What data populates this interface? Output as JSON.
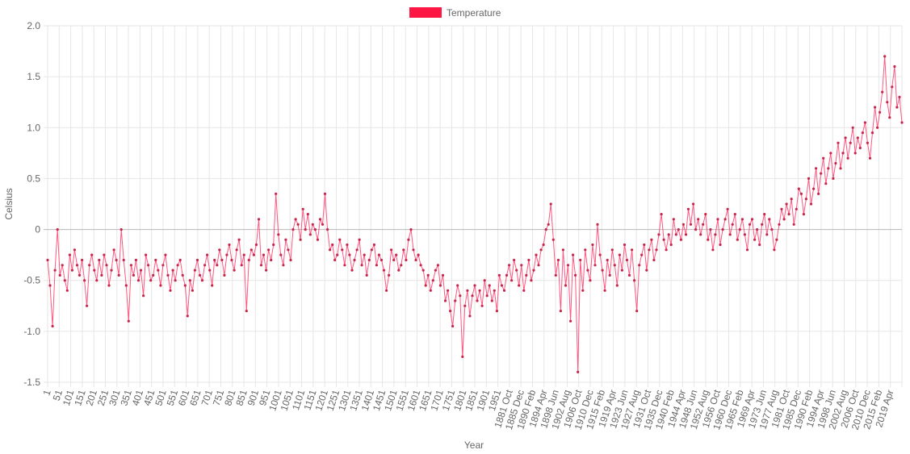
{
  "chart_data": {
    "type": "line",
    "legend": {
      "position": "top-center",
      "label": "Temperature"
    },
    "xlabel": "Year",
    "ylabel": "Celsius",
    "ylim": [
      -1.5,
      2.0
    ],
    "ytick_step": 0.5,
    "yticks": [
      "-1.5",
      "-1.0",
      "-0.5",
      "0",
      "0.5",
      "1.0",
      "1.5",
      "2.0"
    ],
    "grid": true,
    "colors": {
      "line": "#ff3b6b",
      "point": "#c8254a",
      "legend_fill": "#ff1744",
      "grid": "#e6e6e6",
      "zero_line": "#b8b8b8"
    },
    "x_tick_labels": [
      "1",
      "51",
      "101",
      "151",
      "201",
      "251",
      "301",
      "351",
      "401",
      "451",
      "501",
      "551",
      "601",
      "651",
      "701",
      "751",
      "801",
      "851",
      "901",
      "951",
      "1001",
      "1051",
      "1101",
      "1151",
      "1201",
      "1251",
      "1301",
      "1351",
      "1401",
      "1451",
      "1501",
      "1551",
      "1601",
      "1651",
      "1701",
      "1751",
      "1801",
      "1851",
      "1901",
      "1951",
      "1881 Oct",
      "1885 Dec",
      "1890 Feb",
      "1894 Apr",
      "1898 Jun",
      "1902 Aug",
      "1906 Oct",
      "1910 Dec",
      "1915 Feb",
      "1919 Apr",
      "1923 Jun",
      "1927 Aug",
      "1931 Oct",
      "1935 Dec",
      "1940 Feb",
      "1944 Apr",
      "1948 Jun",
      "1952 Aug",
      "1956 Oct",
      "1960 Dec",
      "1965 Feb",
      "1969 Apr",
      "1973 Jun",
      "1977 Aug",
      "1981 Oct",
      "1985 Dec",
      "1990 Feb",
      "1994 Apr",
      "1998 Jun",
      "2002 Aug",
      "2006 Oct",
      "2010 Dec",
      "2015 Feb",
      "2019 Apr"
    ],
    "series": [
      {
        "name": "Temperature",
        "values": [
          -0.3,
          -0.55,
          -0.95,
          -0.4,
          0.0,
          -0.45,
          -0.35,
          -0.5,
          -0.6,
          -0.25,
          -0.4,
          -0.2,
          -0.35,
          -0.45,
          -0.3,
          -0.5,
          -0.75,
          -0.35,
          -0.25,
          -0.4,
          -0.5,
          -0.3,
          -0.45,
          -0.25,
          -0.35,
          -0.55,
          -0.4,
          -0.2,
          -0.3,
          -0.45,
          0.0,
          -0.3,
          -0.55,
          -0.9,
          -0.35,
          -0.45,
          -0.3,
          -0.5,
          -0.4,
          -0.65,
          -0.25,
          -0.35,
          -0.5,
          -0.45,
          -0.3,
          -0.4,
          -0.55,
          -0.35,
          -0.25,
          -0.45,
          -0.6,
          -0.4,
          -0.5,
          -0.35,
          -0.3,
          -0.45,
          -0.55,
          -0.85,
          -0.5,
          -0.6,
          -0.4,
          -0.3,
          -0.45,
          -0.5,
          -0.35,
          -0.25,
          -0.4,
          -0.55,
          -0.3,
          -0.35,
          -0.2,
          -0.3,
          -0.45,
          -0.25,
          -0.15,
          -0.3,
          -0.4,
          -0.2,
          -0.1,
          -0.35,
          -0.25,
          -0.8,
          -0.3,
          -0.2,
          -0.25,
          -0.15,
          0.1,
          -0.35,
          -0.25,
          -0.4,
          -0.2,
          -0.3,
          -0.15,
          0.35,
          -0.05,
          -0.25,
          -0.35,
          -0.1,
          -0.2,
          -0.3,
          0.0,
          0.1,
          0.05,
          -0.1,
          0.2,
          0.0,
          0.15,
          -0.05,
          0.05,
          0.0,
          -0.1,
          0.1,
          0.05,
          0.35,
          0.0,
          -0.2,
          -0.15,
          -0.3,
          -0.25,
          -0.1,
          -0.2,
          -0.35,
          -0.15,
          -0.25,
          -0.4,
          -0.3,
          -0.2,
          -0.1,
          -0.35,
          -0.25,
          -0.45,
          -0.3,
          -0.2,
          -0.15,
          -0.35,
          -0.25,
          -0.3,
          -0.4,
          -0.6,
          -0.45,
          -0.2,
          -0.3,
          -0.25,
          -0.4,
          -0.35,
          -0.2,
          -0.3,
          -0.1,
          0.0,
          -0.2,
          -0.3,
          -0.25,
          -0.35,
          -0.4,
          -0.55,
          -0.45,
          -0.6,
          -0.5,
          -0.4,
          -0.35,
          -0.55,
          -0.45,
          -0.7,
          -0.6,
          -0.8,
          -0.95,
          -0.7,
          -0.55,
          -0.65,
          -1.25,
          -0.75,
          -0.6,
          -0.85,
          -0.65,
          -0.55,
          -0.7,
          -0.6,
          -0.75,
          -0.5,
          -0.65,
          -0.55,
          -0.7,
          -0.6,
          -0.8,
          -0.45,
          -0.55,
          -0.6,
          -0.45,
          -0.35,
          -0.5,
          -0.3,
          -0.4,
          -0.55,
          -0.35,
          -0.6,
          -0.45,
          -0.3,
          -0.5,
          -0.4,
          -0.25,
          -0.35,
          -0.2,
          -0.15,
          0.0,
          0.05,
          0.25,
          -0.1,
          -0.45,
          -0.3,
          -0.8,
          -0.2,
          -0.55,
          -0.35,
          -0.9,
          -0.25,
          -0.45,
          -1.4,
          -0.3,
          -0.6,
          -0.2,
          -0.4,
          -0.5,
          -0.15,
          -0.35,
          0.05,
          -0.25,
          -0.4,
          -0.6,
          -0.3,
          -0.45,
          -0.2,
          -0.35,
          -0.55,
          -0.25,
          -0.4,
          -0.15,
          -0.3,
          -0.45,
          -0.2,
          -0.5,
          -0.8,
          -0.35,
          -0.25,
          -0.15,
          -0.4,
          -0.2,
          -0.1,
          -0.3,
          -0.2,
          -0.05,
          0.15,
          -0.1,
          -0.2,
          -0.05,
          -0.15,
          0.1,
          -0.05,
          0.0,
          -0.1,
          0.05,
          -0.05,
          0.2,
          0.05,
          0.25,
          0.0,
          0.1,
          -0.05,
          0.05,
          0.15,
          -0.1,
          0.0,
          -0.2,
          -0.05,
          0.1,
          -0.15,
          0.0,
          0.1,
          0.2,
          -0.05,
          0.05,
          0.15,
          -0.1,
          0.0,
          0.1,
          -0.05,
          -0.2,
          0.05,
          0.1,
          -0.1,
          0.0,
          -0.15,
          0.05,
          0.15,
          -0.05,
          0.1,
          0.0,
          -0.2,
          -0.1,
          0.05,
          0.2,
          0.1,
          0.25,
          0.15,
          0.3,
          0.05,
          0.2,
          0.4,
          0.35,
          0.15,
          0.3,
          0.5,
          0.25,
          0.4,
          0.6,
          0.35,
          0.55,
          0.7,
          0.45,
          0.6,
          0.75,
          0.5,
          0.65,
          0.85,
          0.6,
          0.75,
          0.9,
          0.7,
          0.85,
          1.0,
          0.75,
          0.9,
          0.8,
          0.95,
          1.05,
          0.85,
          0.7,
          0.95,
          1.2,
          1.0,
          1.15,
          1.35,
          1.7,
          1.25,
          1.1,
          1.4,
          1.6,
          1.2,
          1.3,
          1.05
        ]
      }
    ]
  }
}
